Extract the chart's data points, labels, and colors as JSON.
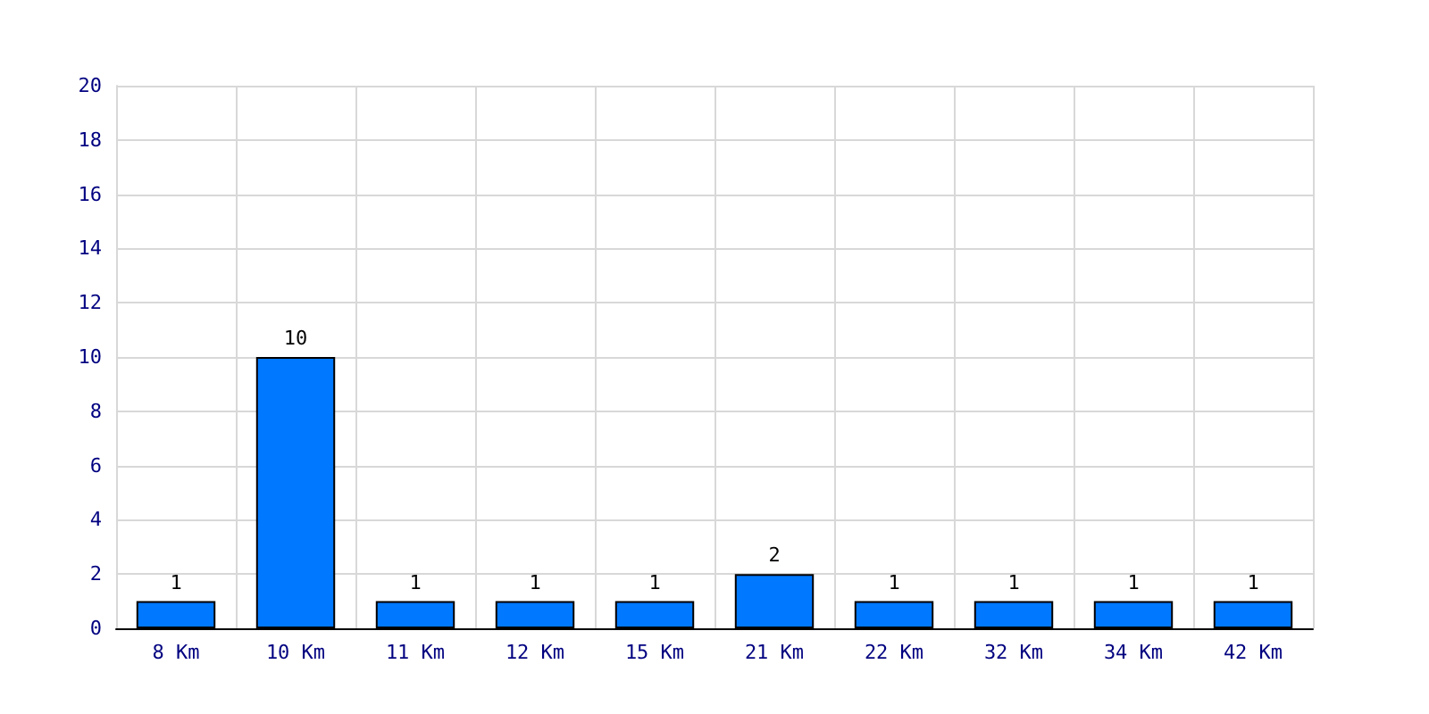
{
  "chart_data": {
    "type": "bar",
    "categories": [
      "8 Km",
      "10 Km",
      "11 Km",
      "12 Km",
      "15 Km",
      "21 Km",
      "22 Km",
      "32 Km",
      "34 Km",
      "42 Km"
    ],
    "values": [
      1,
      10,
      1,
      1,
      1,
      2,
      1,
      1,
      1,
      1
    ],
    "color": "#0078ff",
    "data_labels": true,
    "ylim": [
      0,
      20
    ],
    "yticks": [
      0,
      2,
      4,
      6,
      8,
      10,
      12,
      14,
      16,
      18,
      20
    ],
    "grid": true
  }
}
